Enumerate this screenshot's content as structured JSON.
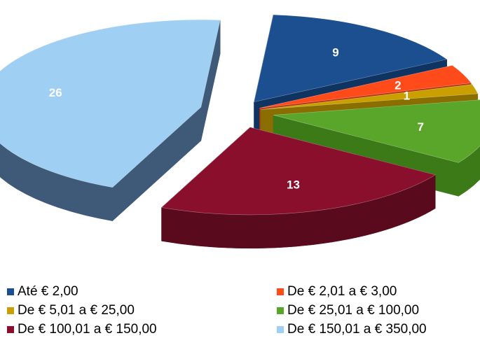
{
  "chart_data": {
    "type": "pie",
    "title": "",
    "series": [
      {
        "name": "",
        "categories": [
          "Até € 2,00",
          "De € 2,01 a € 3,00",
          "De € 5,01 a € 25,00",
          "De € 25,01 a € 100,00",
          "De € 100,01 a € 150,00",
          "De € 150,01 a € 350,00"
        ],
        "values": [
          9,
          2,
          1,
          7,
          13,
          26
        ],
        "data_labels": [
          "9",
          "2",
          "1",
          "7",
          "13",
          "26"
        ],
        "colors": [
          "#1b4f8f",
          "#ff4a1a",
          "#c9a000",
          "#5aa62a",
          "#8a0f2c",
          "#9fd0f4"
        ],
        "side_colors": [
          "#0f3462",
          "#b8340f",
          "#8a6e00",
          "#3c7a18",
          "#5a0a1d",
          "#3f5a78"
        ]
      }
    ],
    "legend_position": "bottom",
    "three_d": true,
    "exploded": true
  }
}
